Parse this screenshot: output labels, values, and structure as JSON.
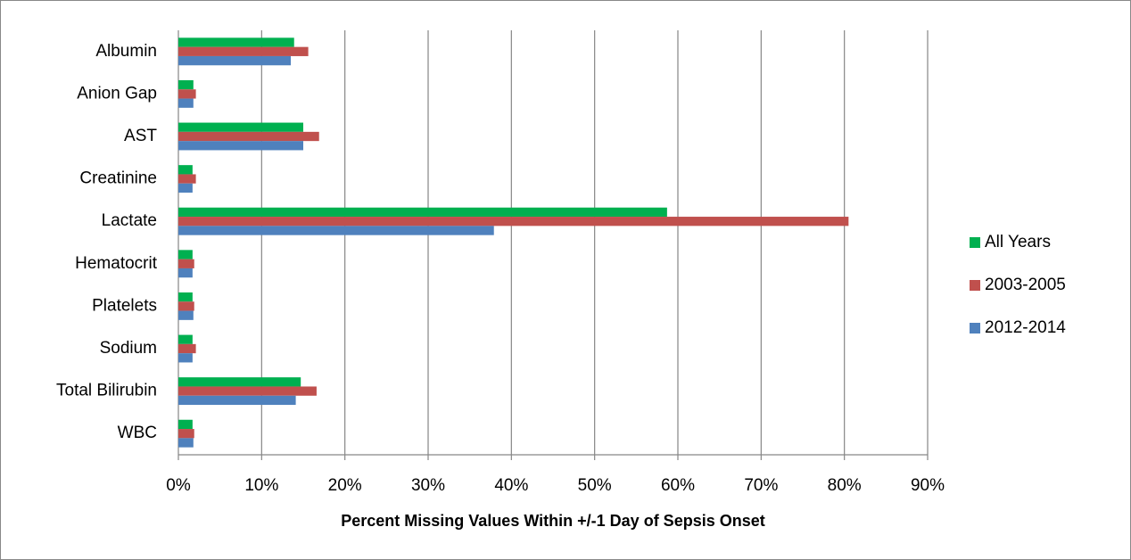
{
  "chart_data": {
    "type": "hbar",
    "x_label": "Percent Missing Values Within +/-1 Day of Sepsis Onset",
    "categories": [
      "Albumin",
      "Anion Gap",
      "AST",
      "Creatinine",
      "Lactate",
      "Hematocrit",
      "Platelets",
      "Sodium",
      "Total Bilirubin",
      "WBC"
    ],
    "series": [
      {
        "name": "All Years",
        "color": "#00b050",
        "values": [
          13.9,
          1.8,
          15.0,
          1.7,
          58.7,
          1.7,
          1.7,
          1.7,
          14.7,
          1.7
        ]
      },
      {
        "name": "2003-2005",
        "color": "#c0504d",
        "values": [
          15.6,
          2.1,
          16.9,
          2.1,
          80.5,
          1.9,
          1.9,
          2.1,
          16.6,
          1.9
        ]
      },
      {
        "name": "2012-2014",
        "color": "#4f81bd",
        "values": [
          13.5,
          1.8,
          15.0,
          1.7,
          37.9,
          1.7,
          1.8,
          1.7,
          14.1,
          1.8
        ]
      }
    ],
    "xlim": [
      0,
      90
    ],
    "xticks": [
      {
        "value": 0,
        "label": "0%"
      },
      {
        "value": 10,
        "label": "10%"
      },
      {
        "value": 20,
        "label": "20%"
      },
      {
        "value": 30,
        "label": "30%"
      },
      {
        "value": 40,
        "label": "40%"
      },
      {
        "value": 50,
        "label": "50%"
      },
      {
        "value": 60,
        "label": "60%"
      },
      {
        "value": 70,
        "label": "70%"
      },
      {
        "value": 80,
        "label": "80%"
      },
      {
        "value": 90,
        "label": "90%"
      }
    ],
    "grid": true,
    "legend": "right"
  }
}
